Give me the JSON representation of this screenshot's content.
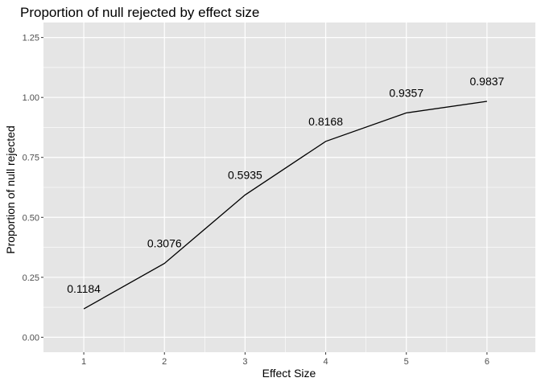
{
  "chart_data": {
    "type": "line",
    "title": "Proportion of null rejected by effect size",
    "xlabel": "Effect Size",
    "ylabel": "Proportion of null rejected",
    "x": [
      1,
      2,
      3,
      4,
      5,
      6
    ],
    "values": [
      0.1184,
      0.3076,
      0.5935,
      0.8168,
      0.9357,
      0.9837
    ],
    "data_labels": [
      "0.1184",
      "0.3076",
      "0.5935",
      "0.8168",
      "0.9357",
      "0.9837"
    ],
    "xticks": [
      "1",
      "2",
      "3",
      "4",
      "5",
      "6"
    ],
    "yticks": [
      "0.00",
      "0.25",
      "0.50",
      "0.75",
      "1.00",
      "1.25"
    ],
    "ytick_values": [
      0,
      0.25,
      0.5,
      0.75,
      1.0,
      1.25
    ],
    "xlim": [
      0.5,
      6.6
    ],
    "ylim": [
      -0.0625,
      1.3125
    ],
    "grid": true,
    "colors": {
      "panel": "#e5e5e5",
      "grid": "#ffffff",
      "line": "#000000"
    }
  }
}
